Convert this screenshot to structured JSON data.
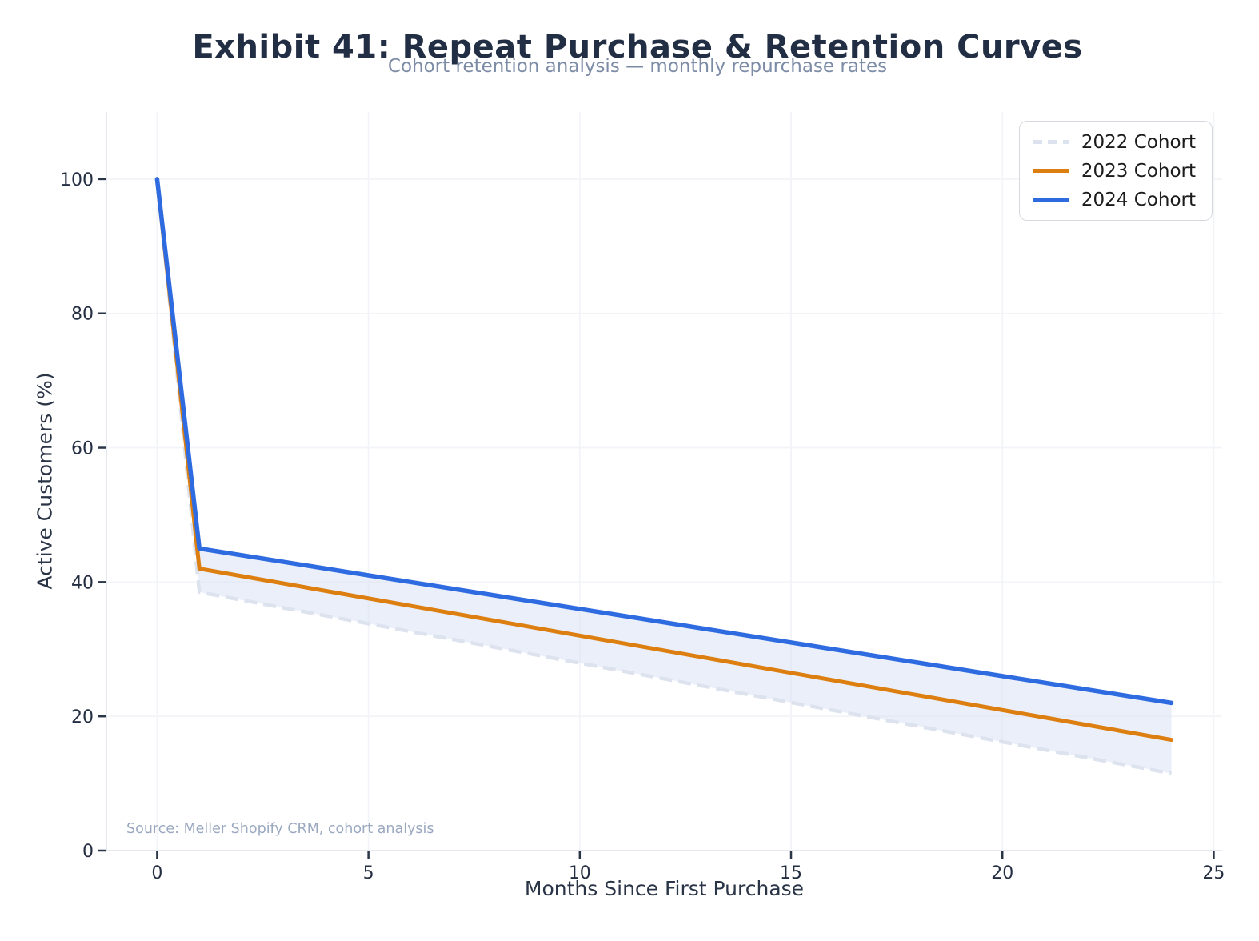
{
  "chart_data": {
    "type": "line",
    "title": "Exhibit 41: Repeat Purchase & Retention Curves",
    "subtitle": "Cohort retention analysis — monthly repurchase rates",
    "xlabel": "Months Since First Purchase",
    "ylabel": "Active Customers (%)",
    "source_note": "Source: Meller Shopify CRM, cohort analysis",
    "x_ticks": [
      0,
      5,
      10,
      15,
      20,
      25
    ],
    "y_ticks": [
      0,
      20,
      40,
      60,
      80,
      100
    ],
    "xlim": [
      -1.2,
      25.2
    ],
    "ylim": [
      0,
      110
    ],
    "grid": true,
    "legend_position": "upper right",
    "series": [
      {
        "name": "2022 Cohort",
        "color": "#dde3ee",
        "style": "dashed",
        "linewidth": 4.5,
        "x": [
          0,
          1,
          24
        ],
        "values": [
          100,
          38.5,
          11.5
        ]
      },
      {
        "name": "2023 Cohort",
        "color": "#dd7f10",
        "style": "solid",
        "linewidth": 5,
        "x": [
          0,
          1,
          24
        ],
        "values": [
          100,
          42,
          16.5
        ]
      },
      {
        "name": "2024 Cohort",
        "color": "#2e6be0",
        "style": "solid",
        "linewidth": 5.5,
        "x": [
          0,
          1,
          24
        ],
        "values": [
          100,
          45,
          22
        ]
      }
    ],
    "band": {
      "between": [
        "2022 Cohort",
        "2024 Cohort"
      ],
      "color": "#d9e2f4",
      "opacity": 0.55
    },
    "colors": {
      "title": "#222e44",
      "subtitle": "#7d8ca6",
      "axis_label": "#2a3447",
      "tick_label": "#242e42",
      "tick_mark": "#2a3648",
      "grid": "#f3f4f7",
      "spine": "#e5e8ee",
      "source": "#9aa8c0",
      "legend_border": "#d5d8dd",
      "legend_text": "#1b1b1b",
      "background": "#ffffff"
    }
  }
}
